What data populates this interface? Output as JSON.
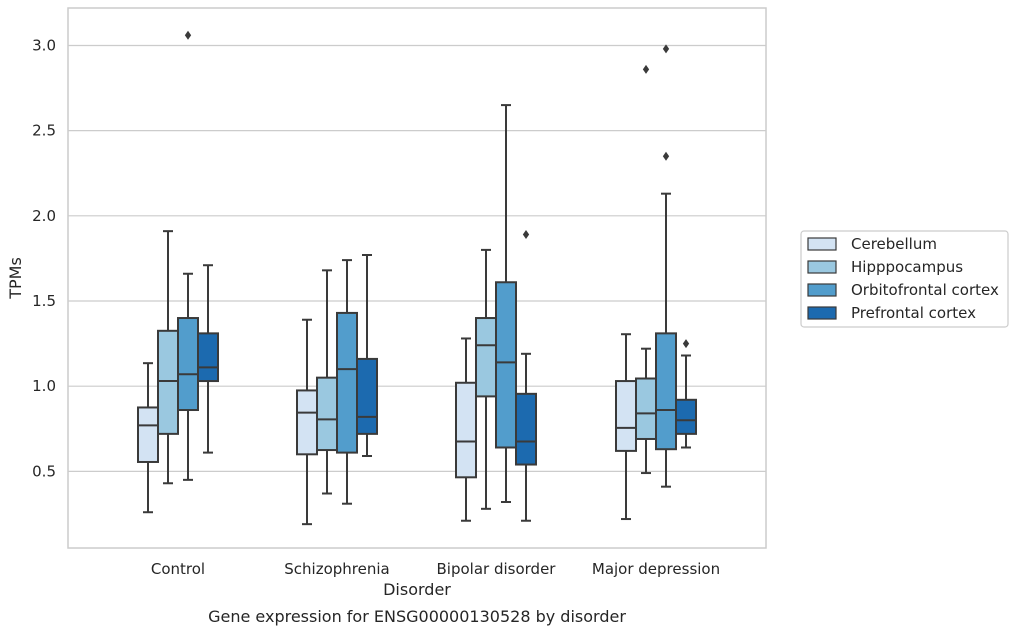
{
  "caption": "Gene expression for ENSG00000130528 by disorder",
  "chart_data": {
    "type": "box",
    "xlabel": "Disorder",
    "ylabel": "TPMs",
    "ylim": [
      0.05,
      3.22
    ],
    "yticks": [
      "0.5",
      "1.0",
      "1.5",
      "2.0",
      "2.5",
      "3.0"
    ],
    "grid": "horizontal",
    "legend_position": "right",
    "categories": [
      "Control",
      "Schizophrenia",
      "Bipolar disorder",
      "Major depression"
    ],
    "series": [
      {
        "name": "Cerebellum",
        "color": "#d3e3f3",
        "boxes": [
          {
            "whisker_low": 0.26,
            "q1": 0.555,
            "median": 0.77,
            "q3": 0.875,
            "whisker_high": 1.135,
            "outliers": []
          },
          {
            "whisker_low": 0.19,
            "q1": 0.6,
            "median": 0.845,
            "q3": 0.975,
            "whisker_high": 1.39,
            "outliers": []
          },
          {
            "whisker_low": 0.21,
            "q1": 0.465,
            "median": 0.675,
            "q3": 1.02,
            "whisker_high": 1.28,
            "outliers": []
          },
          {
            "whisker_low": 0.22,
            "q1": 0.62,
            "median": 0.755,
            "q3": 1.03,
            "whisker_high": 1.305,
            "outliers": []
          }
        ]
      },
      {
        "name": "Hipppocampus",
        "color": "#9ac8e0",
        "boxes": [
          {
            "whisker_low": 0.43,
            "q1": 0.72,
            "median": 1.03,
            "q3": 1.325,
            "whisker_high": 1.91,
            "outliers": []
          },
          {
            "whisker_low": 0.37,
            "q1": 0.625,
            "median": 0.805,
            "q3": 1.05,
            "whisker_high": 1.68,
            "outliers": []
          },
          {
            "whisker_low": 0.28,
            "q1": 0.94,
            "median": 1.24,
            "q3": 1.4,
            "whisker_high": 1.8,
            "outliers": []
          },
          {
            "whisker_low": 0.49,
            "q1": 0.69,
            "median": 0.84,
            "q3": 1.045,
            "whisker_high": 1.22,
            "outliers": [
              2.86
            ]
          }
        ]
      },
      {
        "name": "Orbitofrontal cortex",
        "color": "#529dcc",
        "boxes": [
          {
            "whisker_low": 0.45,
            "q1": 0.86,
            "median": 1.07,
            "q3": 1.4,
            "whisker_high": 1.66,
            "outliers": [
              3.06
            ]
          },
          {
            "whisker_low": 0.31,
            "q1": 0.61,
            "median": 1.1,
            "q3": 1.43,
            "whisker_high": 1.74,
            "outliers": []
          },
          {
            "whisker_low": 0.32,
            "q1": 0.64,
            "median": 1.14,
            "q3": 1.61,
            "whisker_high": 2.65,
            "outliers": []
          },
          {
            "whisker_low": 0.41,
            "q1": 0.63,
            "median": 0.86,
            "q3": 1.31,
            "whisker_high": 2.13,
            "outliers": [
              2.35,
              2.98
            ]
          }
        ]
      },
      {
        "name": "Prefrontal cortex",
        "color": "#1c6aaf",
        "boxes": [
          {
            "whisker_low": 0.61,
            "q1": 1.03,
            "median": 1.11,
            "q3": 1.31,
            "whisker_high": 1.71,
            "outliers": []
          },
          {
            "whisker_low": 0.59,
            "q1": 0.72,
            "median": 0.82,
            "q3": 1.16,
            "whisker_high": 1.77,
            "outliers": []
          },
          {
            "whisker_low": 0.21,
            "q1": 0.54,
            "median": 0.675,
            "q3": 0.955,
            "whisker_high": 1.19,
            "outliers": [
              1.89
            ]
          },
          {
            "whisker_low": 0.64,
            "q1": 0.72,
            "median": 0.8,
            "q3": 0.92,
            "whisker_high": 1.18,
            "outliers": [
              1.25
            ]
          }
        ]
      }
    ]
  }
}
